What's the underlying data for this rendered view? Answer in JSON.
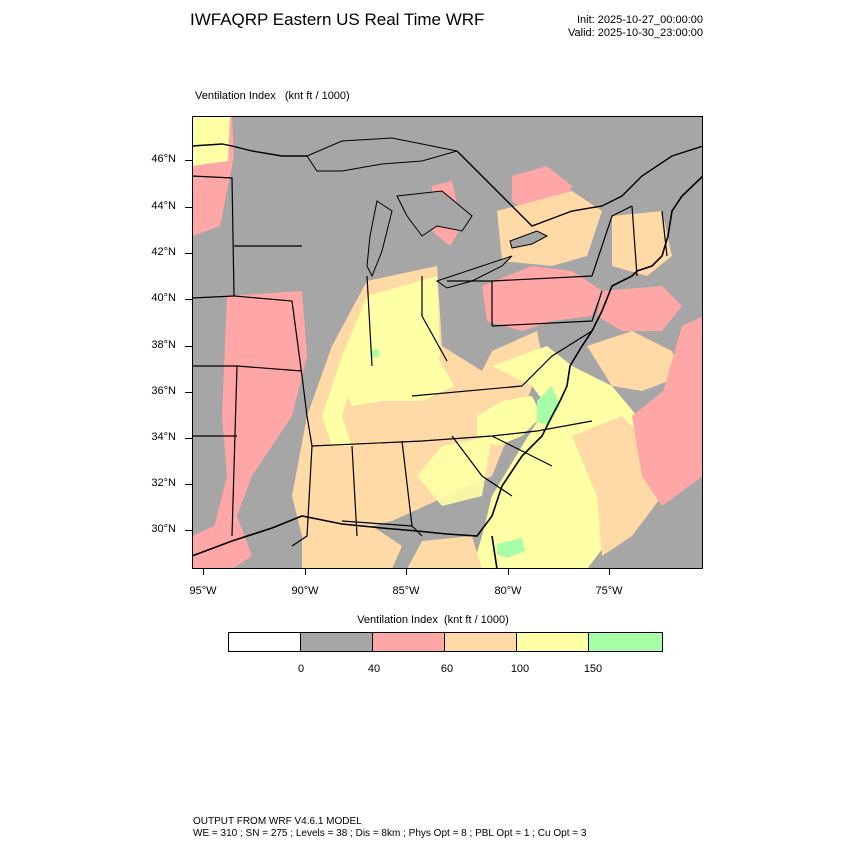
{
  "header": {
    "title": "IWFAQRP Eastern US Real Time WRF",
    "init": "Init: 2025-10-27_00:00:00",
    "valid": "Valid: 2025-10-30_23:00:00"
  },
  "field": {
    "name": "Ventilation Index",
    "units": "(knt ft / 1000)",
    "label": "Ventilation Index   (knt ft / 1000)"
  },
  "map": {
    "lat_labels": [
      "46°N",
      "44°N",
      "42°N",
      "40°N",
      "38°N",
      "36°N",
      "34°N",
      "32°N",
      "30°N"
    ],
    "lon_labels": [
      "95°W",
      "90°W",
      "85°W",
      "80°W",
      "75°W"
    ],
    "grid": "off",
    "background_color": "#a6a6a6",
    "land_edge_color": "#000000"
  },
  "colorbar": {
    "title": "Ventilation Index  (knt ft / 1000)",
    "levels": [
      "0",
      "40",
      "60",
      "100",
      "150"
    ],
    "bins": [
      {
        "range": "below 0",
        "color": "#ffffff"
      },
      {
        "range": "0-40",
        "color": "#a6a6a6"
      },
      {
        "range": "40-60",
        "color": "#ffa6a6"
      },
      {
        "range": "60-100",
        "color": "#ffd9a6"
      },
      {
        "range": "100-150",
        "color": "#ffffa6"
      },
      {
        "range": "150+",
        "color": "#a6ffa6"
      }
    ]
  },
  "footer": {
    "line1": "OUTPUT FROM WRF V4.6.1 MODEL",
    "line2": "WE = 310 ; SN = 275 ; Levels = 38 ; Dis = 8km ; Phys Opt = 8 ; PBL Opt = 1 ; Cu Opt = 3"
  }
}
